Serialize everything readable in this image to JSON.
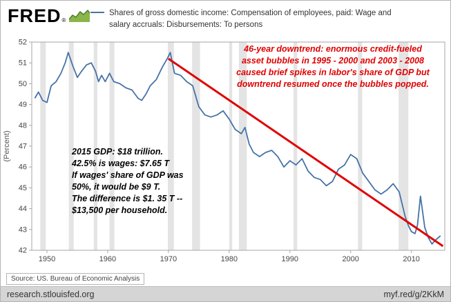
{
  "header": {
    "brand": "FRED",
    "registered": "®",
    "legend_lines": [
      "Shares of gross domestic income: Compensation of employees, paid: Wage and",
      "salary accruals: Disbursements: To persons"
    ]
  },
  "annotations": {
    "red_color": "#e00000",
    "red_lines": [
      "46-year downtrend: enormous credit-fueled",
      "asset bubbles in 1995 - 2000 and 2003 - 2008",
      "caused brief spikes in labor's share of GDP but",
      "downtrend resumed once the bubbles popped."
    ],
    "black_color": "#000000",
    "black_lines": [
      "2015 GDP: $18 trillion.",
      "42.5% is wages: $7.65 T",
      "If wages' share of GDP was",
      "50%, it would be $9 T.",
      "The difference is $1. 35 T --",
      "$13,500 per household."
    ]
  },
  "source": "Source: US. Bureau of Economic Analysis",
  "footer": {
    "left": "research.stlouisfed.org",
    "right": "myf.red/g/2KkM"
  },
  "chart_data": {
    "type": "line",
    "title": "",
    "xlabel": "",
    "ylabel": "(Percent)",
    "ylim": [
      42,
      52
    ],
    "yticks": [
      42,
      43,
      44,
      45,
      46,
      47,
      48,
      49,
      50,
      51,
      52
    ],
    "xlim": [
      1947.5,
      2015.5
    ],
    "xticks": [
      1950,
      1960,
      1970,
      1980,
      1990,
      2000,
      2010
    ],
    "grid": false,
    "legend_position": "top",
    "band_color": "#e4e4e4",
    "recession_bands": [
      [
        1948.9,
        1949.8
      ],
      [
        1953.6,
        1954.4
      ],
      [
        1957.7,
        1958.3
      ],
      [
        1960.3,
        1961.1
      ],
      [
        1969.9,
        1970.9
      ],
      [
        1973.9,
        1975.2
      ],
      [
        1980.0,
        1980.5
      ],
      [
        1981.6,
        1982.9
      ],
      [
        1990.6,
        1991.2
      ],
      [
        2001.2,
        2001.9
      ],
      [
        2007.9,
        2009.5
      ]
    ],
    "series": [
      {
        "name": "Shares of gross domestic income: Compensation of employees, paid: Wage and salary accruals: Disbursements: To persons",
        "color": "#4572a7",
        "x": [
          1948,
          1948.6,
          1949.3,
          1950,
          1950.7,
          1951.5,
          1952.3,
          1953,
          1953.5,
          1954.2,
          1955,
          1955.7,
          1956.5,
          1957.3,
          1958,
          1958.5,
          1959,
          1959.6,
          1960.3,
          1961,
          1962,
          1963,
          1964,
          1965,
          1965.6,
          1966.3,
          1967,
          1968,
          1969,
          1969.8,
          1970.3,
          1971,
          1972,
          1973,
          1974,
          1975,
          1976,
          1977,
          1978,
          1979,
          1980,
          1981,
          1982,
          1982.6,
          1983.3,
          1984,
          1985,
          1986,
          1987,
          1988,
          1989,
          1990,
          1991,
          1992,
          1993,
          1994,
          1995,
          1996,
          1997,
          1998,
          1999,
          2000,
          2001,
          2002,
          2003,
          2004,
          2005,
          2006,
          2007,
          2008,
          2009,
          2009.5,
          2010,
          2010.6,
          2011,
          2011.5,
          2012.2,
          2012.8,
          2013.4,
          2014,
          2014.8
        ],
        "y": [
          49.3,
          49.6,
          49.2,
          49.1,
          49.9,
          50.1,
          50.5,
          51.0,
          51.5,
          50.9,
          50.3,
          50.6,
          50.9,
          51.0,
          50.6,
          50.1,
          50.4,
          50.1,
          50.5,
          50.1,
          50.0,
          49.8,
          49.7,
          49.3,
          49.2,
          49.5,
          49.9,
          50.2,
          50.8,
          51.2,
          51.5,
          50.5,
          50.4,
          50.1,
          49.9,
          48.9,
          48.5,
          48.4,
          48.5,
          48.7,
          48.3,
          47.8,
          47.6,
          47.9,
          47.1,
          46.7,
          46.5,
          46.7,
          46.8,
          46.5,
          46.0,
          46.3,
          46.1,
          46.4,
          45.8,
          45.5,
          45.4,
          45.1,
          45.3,
          45.9,
          46.1,
          46.6,
          46.4,
          45.7,
          45.3,
          44.9,
          44.7,
          44.9,
          45.2,
          44.8,
          43.6,
          43.2,
          42.9,
          42.8,
          43.2,
          44.6,
          43.1,
          42.6,
          42.3,
          42.5,
          42.7
        ]
      }
    ],
    "trendline": {
      "name": "46-year downtrend",
      "color": "#e00000",
      "x": [
        1970,
        2015.2
      ],
      "y": [
        51.2,
        42.2
      ]
    }
  }
}
